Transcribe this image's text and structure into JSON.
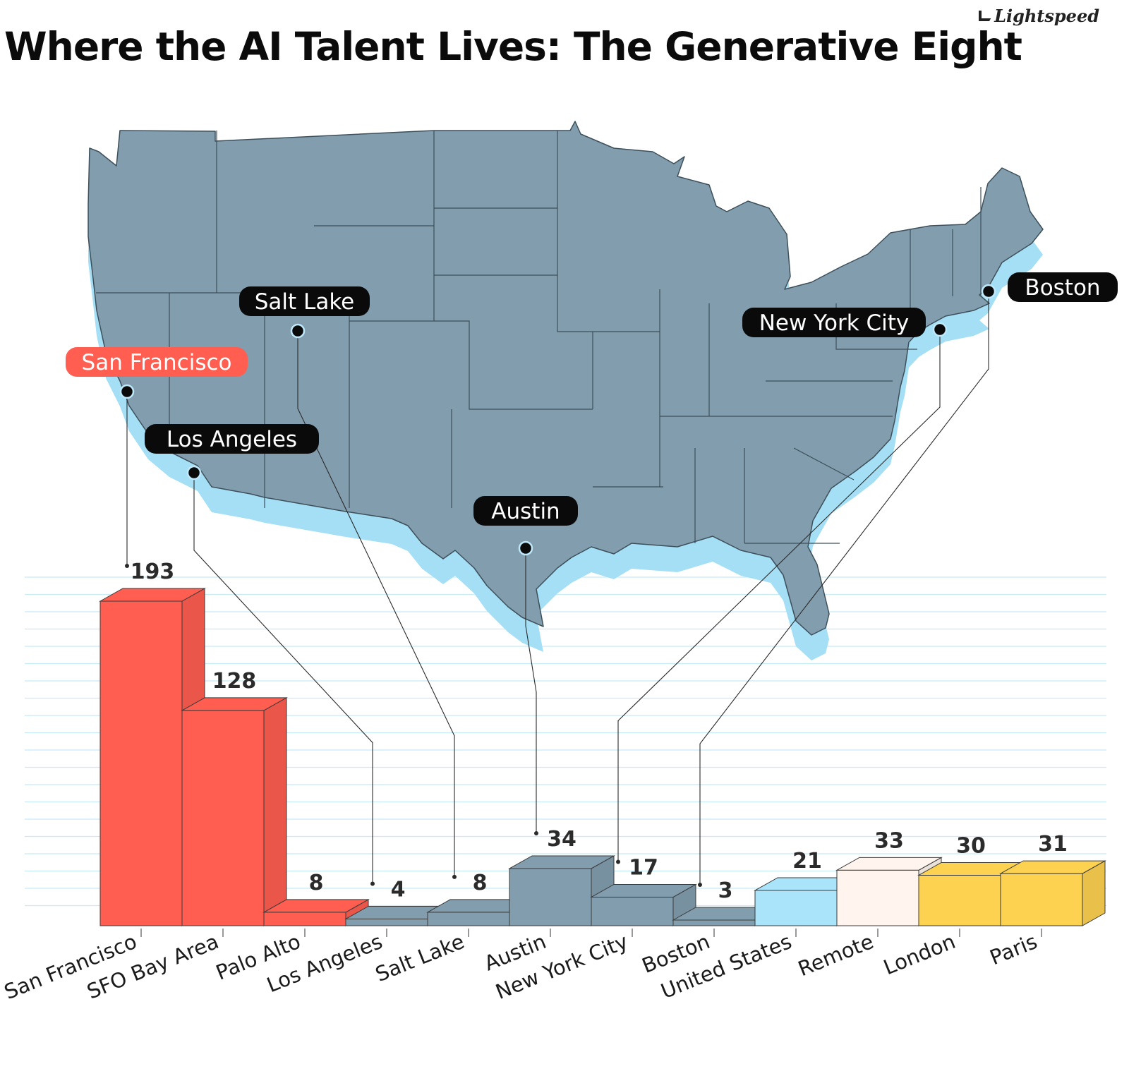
{
  "title": "Where the AI Talent Lives: The Generative Eight",
  "brand": {
    "name": "Lightspeed"
  },
  "colors": {
    "sf": "#ff5e51",
    "us_city": "#829eae",
    "us": "#a9e4fb",
    "remote": "#fff5ee",
    "europe": "#fdd250",
    "map": "#829eae",
    "map_shadow": "#a5dff5",
    "gridline": "#c7ebf8"
  },
  "chart_data": {
    "type": "bar",
    "title": "Where the AI Talent Lives: The Generative Eight",
    "xlabel": "",
    "ylabel": "",
    "ylim": [
      0,
      200
    ],
    "grid": true,
    "categories": [
      "San Francisco",
      "SFO Bay Area",
      "Palo Alto",
      "Los Angeles",
      "Salt Lake",
      "Austin",
      "New York City",
      "Boston",
      "United States",
      "Remote",
      "London",
      "Paris"
    ],
    "values": [
      193,
      128,
      8,
      4,
      8,
      34,
      17,
      3,
      21,
      33,
      30,
      31
    ],
    "groups": [
      "sf",
      "sf",
      "sf",
      "us_city",
      "us_city",
      "us_city",
      "us_city",
      "us_city",
      "us",
      "remote",
      "europe",
      "europe"
    ],
    "map_labels": [
      {
        "label": "San Francisco",
        "bar_index": 0,
        "highlight": true
      },
      {
        "label": "Salt Lake",
        "bar_index": 4,
        "highlight": false
      },
      {
        "label": "Los Angeles",
        "bar_index": 3,
        "highlight": false
      },
      {
        "label": "Austin",
        "bar_index": 5,
        "highlight": false
      },
      {
        "label": "New York City",
        "bar_index": 6,
        "highlight": false
      },
      {
        "label": "Boston",
        "bar_index": 7,
        "highlight": false
      }
    ]
  }
}
